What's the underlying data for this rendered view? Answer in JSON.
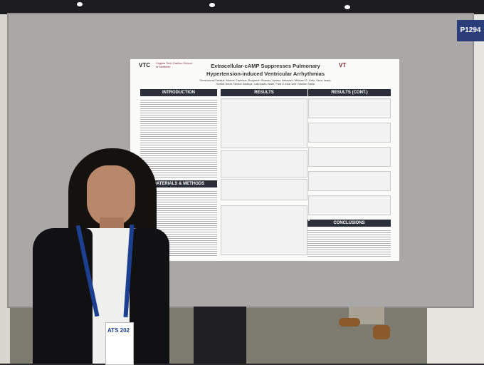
{
  "booth": {
    "code": "P1294"
  },
  "poster": {
    "logo": "VTC",
    "school": "Virginia Tech Carilion School of Medicine",
    "partner": "VT",
    "title_lines": [
      "Extracellular-cAMP Suppresses Pulmonary",
      "Hypertension-induced Ventricular Arrhythmias"
    ],
    "authors": [
      "Sheshruma Parajuli, Monne Cachaux, Benjamin Strauss, Aymen Halouani, Michael G. Katz, Seun Imani,",
      "Samar Antar, Nestor Badoya, Lahouaria Hadri, Fadi G Akar and Yassine Sassi"
    ],
    "sections": {
      "introduction": "INTRODUCTION",
      "results": "RESULTS",
      "results_cont": "RESULTS (CONT.)",
      "methods": "MATERIALS & METHODS",
      "conclusions": "CONCLUSIONS"
    }
  },
  "badge": {
    "text": "ATS 202"
  }
}
